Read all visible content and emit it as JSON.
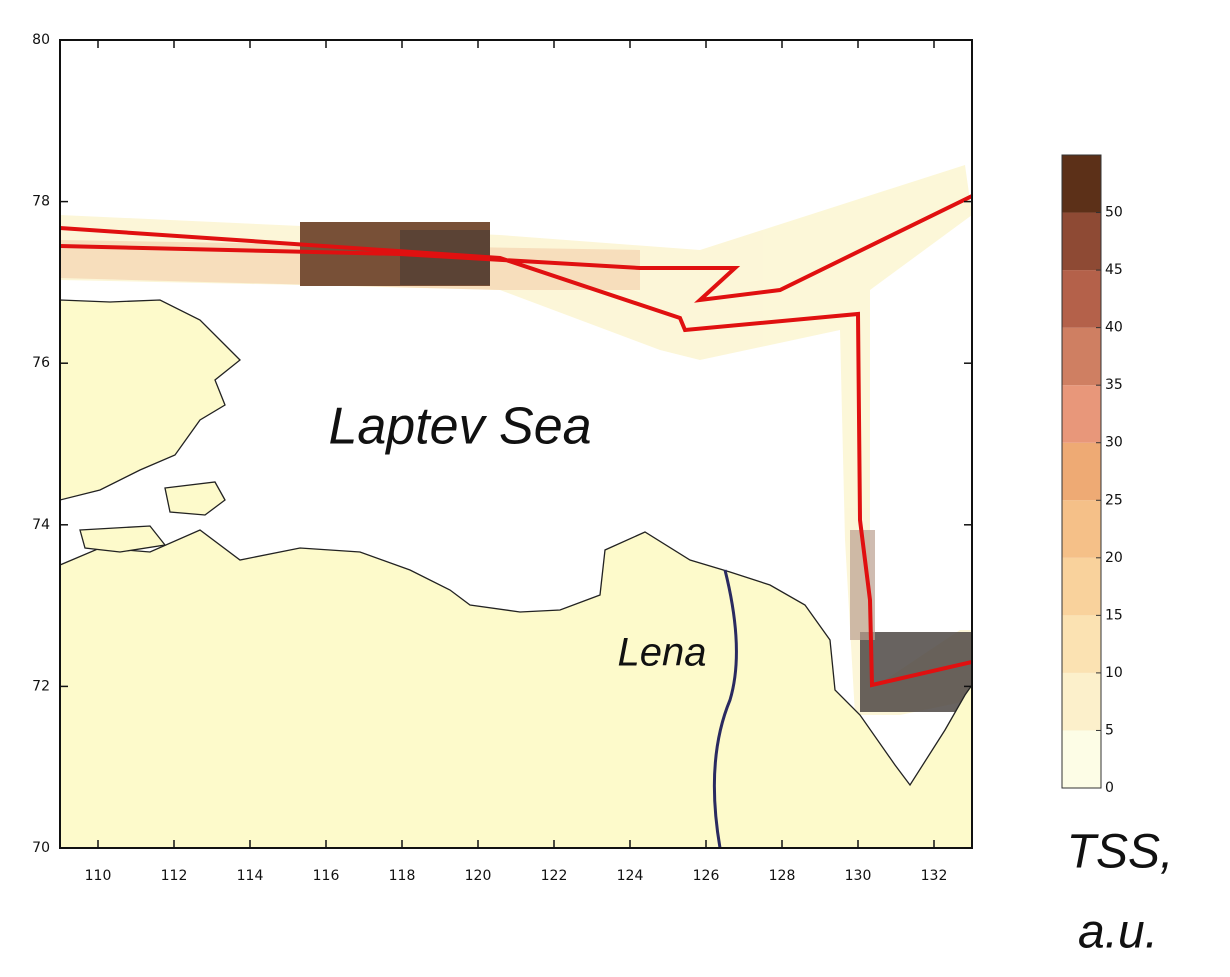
{
  "map": {
    "labels": {
      "sea": "Laptev Sea",
      "river": "Lena"
    },
    "xlim": [
      109,
      133
    ],
    "xticks": [
      110,
      112,
      114,
      116,
      118,
      120,
      122,
      124,
      126,
      128,
      130,
      132
    ],
    "ylim": [
      70,
      80
    ],
    "yticks": [
      70,
      72,
      74,
      76,
      78,
      80
    ],
    "colorbar": {
      "title": [
        "TSS,",
        "a.u."
      ],
      "lim": [
        0,
        55
      ],
      "ticks": [
        0,
        5,
        10,
        15,
        20,
        25,
        30,
        35,
        40,
        45,
        50
      ],
      "colors": [
        "#fdfde6",
        "#fcf0cb",
        "#fbe2b2",
        "#f9d29c",
        "#f5c088",
        "#eeaa74",
        "#e8977a",
        "#cf7f62",
        "#b4614a",
        "#8e4a34",
        "#5c3018"
      ]
    },
    "track_color": "#e01010",
    "land_color": "#fdfacb"
  }
}
